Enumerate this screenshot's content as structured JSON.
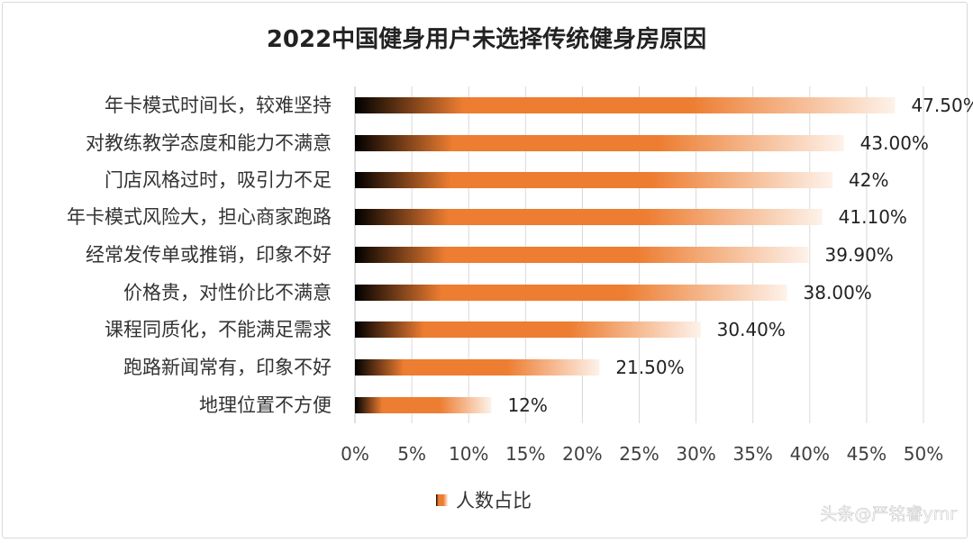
{
  "chart_data": {
    "type": "bar",
    "orientation": "horizontal",
    "title": "2022中国健身用户未选择传统健身房原因",
    "categories": [
      "年卡模式时间长，较难坚持",
      "对教练教学态度和能力不满意",
      "门店风格过时，吸引力不足",
      "年卡模式风险大，担心商家跑路",
      "经常发传单或推销，印象不好",
      "价格贵，对性价比不满意",
      "课程同质化，不能满足需求",
      "跑路新闻常有，印象不好",
      "地理位置不方便"
    ],
    "series": [
      {
        "name": "人数占比",
        "values": [
          47.5,
          43.0,
          42,
          41.1,
          39.9,
          38.0,
          30.4,
          21.5,
          12
        ],
        "labels": [
          "47.50%",
          "43.00%",
          "42%",
          "41.10%",
          "39.90%",
          "38.00%",
          "30.40%",
          "21.50%",
          "12%"
        ]
      }
    ],
    "xlim": [
      0,
      50
    ],
    "xticks": [
      "0%",
      "5%",
      "10%",
      "15%",
      "20%",
      "25%",
      "30%",
      "35%",
      "40%",
      "45%",
      "50%"
    ],
    "grid": "vertical",
    "legend": "bottom",
    "colors": {
      "dark": "#000000",
      "mid": "#ed7d31",
      "light": "#fdf2ea"
    }
  },
  "watermark": "头条@严铭睿ymr"
}
